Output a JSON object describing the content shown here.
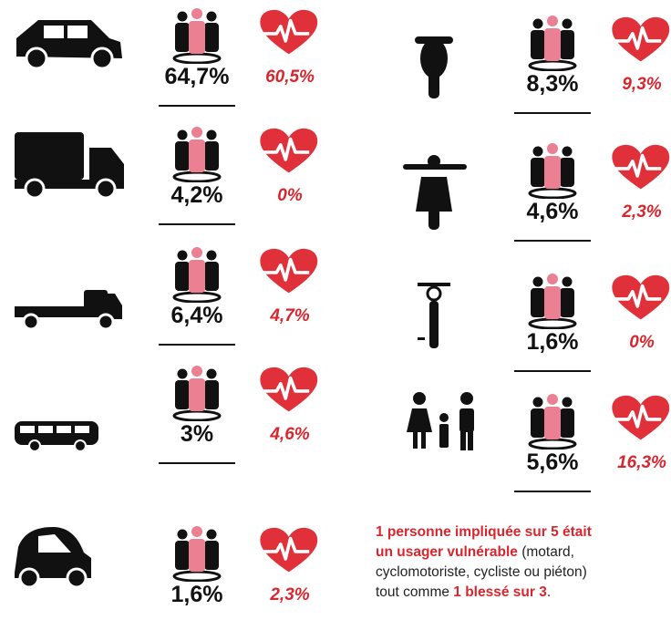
{
  "rows_left": [
    {
      "involved": "64,7%",
      "injured": "60,5%"
    },
    {
      "involved": "4,2%",
      "injured": "0%"
    },
    {
      "involved": "6,4%",
      "injured": "4,7%"
    },
    {
      "involved": "3%",
      "injured": "4,6%"
    },
    {
      "involved": "1,6%",
      "injured": "2,3%"
    }
  ],
  "rows_right": [
    {
      "involved": "8,3%",
      "injured": "9,3%"
    },
    {
      "involved": "4,6%",
      "injured": "2,3%"
    },
    {
      "involved": "1,6%",
      "injured": "0%"
    },
    {
      "involved": "5,6%",
      "injured": "16,3%"
    }
  ],
  "note": [
    [
      {
        "text": "1 personne impliquée sur 5 était",
        "strong": true
      }
    ],
    [
      {
        "text": "un usager vulnérable",
        "strong": true
      },
      {
        "text": " (motard,",
        "strong": false
      }
    ],
    [
      {
        "text": "cyclomotoriste, cycliste ou piéton)",
        "strong": false
      }
    ],
    [
      {
        "text": "tout comme ",
        "strong": false
      },
      {
        "text": "1 blessé sur 3",
        "strong": true
      },
      {
        "text": ".",
        "strong": false
      }
    ]
  ]
}
